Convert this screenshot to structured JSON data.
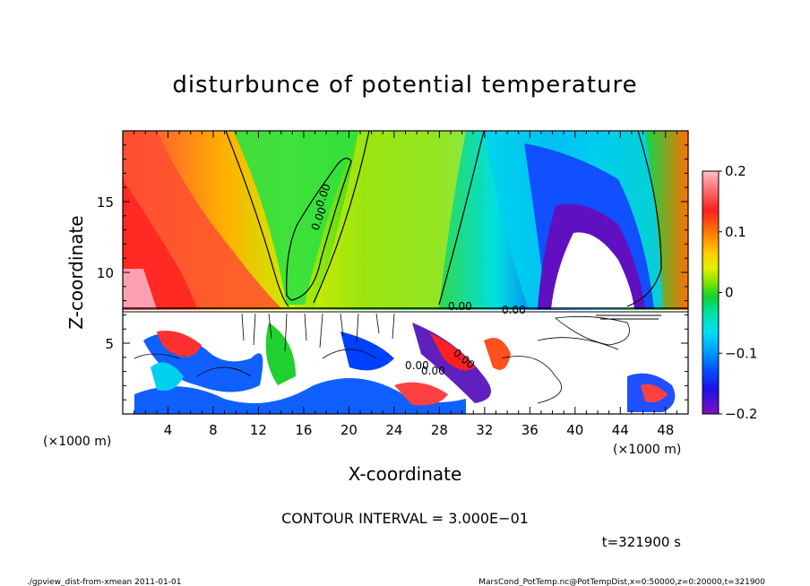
{
  "chart_data": {
    "type": "heatmap",
    "title": "disturbunce of potential temperature",
    "xlabel": "X-coordinate",
    "ylabel": "Z-coordinate",
    "x_unit_left": "(×1000 m)",
    "x_unit_right": "(×1000 m)",
    "xlim": [
      0,
      50
    ],
    "ylim": [
      0,
      20
    ],
    "x_ticks": [
      4,
      8,
      12,
      16,
      20,
      24,
      28,
      32,
      36,
      40,
      44,
      48
    ],
    "x_tick_labels": [
      "4",
      "8",
      "12",
      "16",
      "20",
      "24",
      "28",
      "32",
      "36",
      "40",
      "44",
      "48"
    ],
    "y_ticks": [
      5,
      10,
      15
    ],
    "y_tick_labels": [
      "5",
      "10",
      "15"
    ],
    "colorbar": {
      "range": [
        -0.2,
        0.2
      ],
      "ticks": [
        0.2,
        0.1,
        0,
        -0.1,
        -0.2
      ],
      "tick_labels": [
        "0.2",
        "0.1",
        "0",
        "−0.1",
        "−0.2"
      ]
    },
    "contour_labels": [
      "0.00",
      "0.00",
      "0.00",
      "0.00",
      "0.00",
      "0.00",
      "0.00"
    ],
    "contour_interval_text": "CONTOUR INTERVAL = 3.000E−01",
    "time_text": "t=321900 s"
  },
  "footer": {
    "left": "./gpview_dist-from-xmean  2011-01-01",
    "right": "MarsCond_PotTemp.nc@PotTempDist,x=0:50000,z=0:20000,t=321900"
  }
}
